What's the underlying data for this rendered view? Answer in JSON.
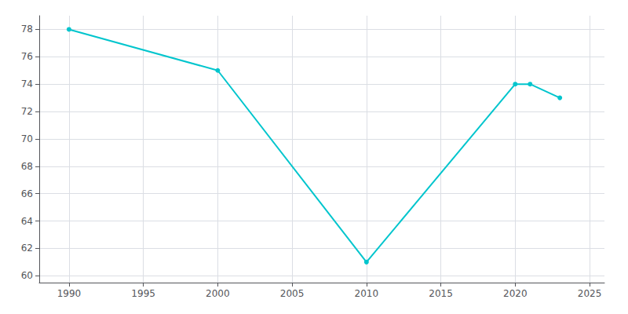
{
  "chart_data": {
    "type": "line",
    "x": [
      1990,
      2000,
      2010,
      2020,
      2021,
      2023
    ],
    "values": [
      78,
      75,
      61,
      74,
      74,
      73
    ],
    "color": "#00C5CD",
    "marker": "circle",
    "xlim": [
      1988,
      2026
    ],
    "ylim": [
      59.5,
      79
    ],
    "xticks": [
      1990,
      1995,
      2000,
      2005,
      2010,
      2015,
      2020,
      2025
    ],
    "yticks": [
      60,
      62,
      64,
      66,
      68,
      70,
      72,
      74,
      76,
      78
    ],
    "grid": true
  }
}
